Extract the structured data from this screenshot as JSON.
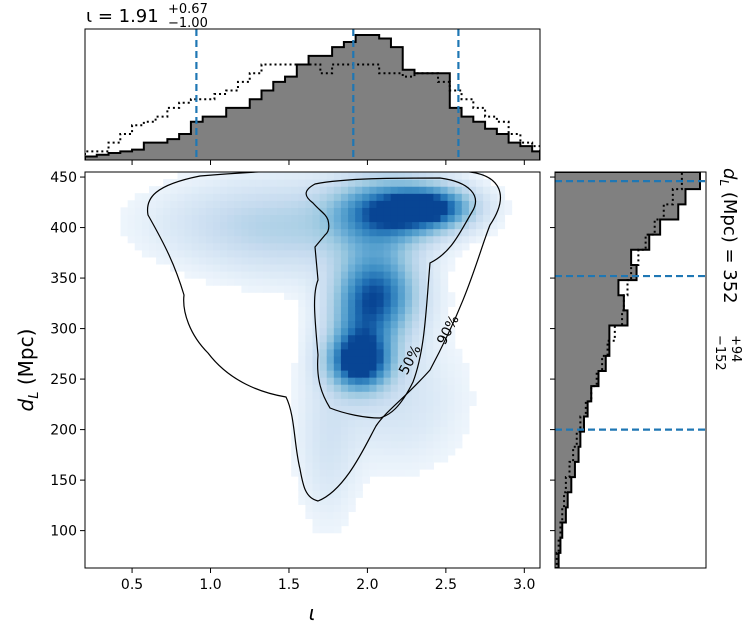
{
  "chart_data": {
    "type": "corner",
    "titles": {
      "top_main": "ι = 1.91",
      "top_sup": "+0.67",
      "top_sub": "−1.00",
      "right_main": "d",
      "right_main_sub": "L",
      "right_rest": " (Mpc) = 352",
      "right_sup": "+94",
      "right_sub": "−152"
    },
    "xlabel": "ι",
    "ylabel_main": "d",
    "ylabel_sub": "L",
    "ylabel_rest": " (Mpc)",
    "xlim": [
      0.2,
      3.1
    ],
    "ylim": [
      63,
      455
    ],
    "xticks": [
      0.5,
      1.0,
      1.5,
      2.0,
      2.5,
      3.0
    ],
    "xtick_labels": [
      "0.5",
      "1.0",
      "1.5",
      "2.0",
      "2.5",
      "3.0"
    ],
    "yticks": [
      100,
      150,
      200,
      250,
      300,
      350,
      400,
      450
    ],
    "ytick_labels": [
      "100",
      "150",
      "200",
      "250",
      "300",
      "350",
      "400",
      "450"
    ],
    "iota_quantiles": [
      0.91,
      1.91,
      2.58
    ],
    "dl_quantiles": [
      200,
      352,
      446
    ],
    "colors": {
      "hist_fill": "#808080",
      "quantile_line": "#1f77b4",
      "density": "#08306b"
    },
    "contour_labels": [
      "50%",
      "90%"
    ],
    "iota_hist": {
      "bin_edges": [
        0.2,
        0.275,
        0.35,
        0.425,
        0.5,
        0.575,
        0.65,
        0.725,
        0.8,
        0.875,
        0.95,
        1.025,
        1.1,
        1.175,
        1.25,
        1.325,
        1.4,
        1.475,
        1.55,
        1.625,
        1.7,
        1.775,
        1.85,
        1.925,
        2.0,
        2.075,
        2.15,
        2.225,
        2.3,
        2.375,
        2.45,
        2.525,
        2.6,
        2.675,
        2.75,
        2.825,
        2.9,
        2.975,
        3.05,
        3.1
      ],
      "posterior": [
        0.02,
        0.03,
        0.04,
        0.05,
        0.06,
        0.1,
        0.1,
        0.12,
        0.15,
        0.22,
        0.25,
        0.25,
        0.3,
        0.3,
        0.35,
        0.4,
        0.45,
        0.48,
        0.55,
        0.6,
        0.6,
        0.65,
        0.68,
        0.72,
        0.72,
        0.7,
        0.65,
        0.52,
        0.5,
        0.5,
        0.5,
        0.3,
        0.25,
        0.22,
        0.18,
        0.15,
        0.1,
        0.08,
        0.05
      ],
      "prior": [
        0.05,
        0.05,
        0.1,
        0.15,
        0.2,
        0.22,
        0.25,
        0.3,
        0.33,
        0.35,
        0.35,
        0.38,
        0.4,
        0.45,
        0.5,
        0.55,
        0.55,
        0.55,
        0.55,
        0.55,
        0.5,
        0.55,
        0.55,
        0.55,
        0.55,
        0.5,
        0.5,
        0.48,
        0.5,
        0.5,
        0.45,
        0.4,
        0.35,
        0.3,
        0.25,
        0.22,
        0.15,
        0.1,
        0.08
      ]
    },
    "dl_hist": {
      "bin_edges": [
        63,
        78,
        93,
        108,
        123,
        138,
        153,
        168,
        183,
        198,
        213,
        228,
        243,
        258,
        273,
        288,
        303,
        318,
        333,
        348,
        363,
        378,
        393,
        408,
        423,
        438,
        455
      ],
      "posterior": [
        0.02,
        0.03,
        0.04,
        0.06,
        0.07,
        0.09,
        0.11,
        0.13,
        0.14,
        0.16,
        0.18,
        0.2,
        0.24,
        0.28,
        0.3,
        0.3,
        0.4,
        0.38,
        0.35,
        0.45,
        0.42,
        0.52,
        0.58,
        0.68,
        0.72,
        0.8
      ],
      "prior": [
        0.01,
        0.02,
        0.03,
        0.04,
        0.05,
        0.06,
        0.08,
        0.1,
        0.12,
        0.14,
        0.17,
        0.2,
        0.23,
        0.26,
        0.29,
        0.33,
        0.37,
        0.38,
        0.4,
        0.42,
        0.46,
        0.5,
        0.55,
        0.6,
        0.65,
        0.7
      ]
    },
    "density_blobs": [
      {
        "x": 1.95,
        "y": 268,
        "sx": 0.13,
        "sy": 18,
        "w": 1.0
      },
      {
        "x": 2.4,
        "y": 420,
        "sx": 0.18,
        "sy": 14,
        "w": 1.0
      },
      {
        "x": 2.1,
        "y": 415,
        "sx": 0.22,
        "sy": 22,
        "w": 0.85
      },
      {
        "x": 2.1,
        "y": 335,
        "sx": 0.16,
        "sy": 30,
        "w": 0.7
      },
      {
        "x": 1.95,
        "y": 310,
        "sx": 0.14,
        "sy": 40,
        "w": 0.5
      },
      {
        "x": 1.55,
        "y": 400,
        "sx": 0.35,
        "sy": 30,
        "w": 0.22
      },
      {
        "x": 1.1,
        "y": 405,
        "sx": 0.35,
        "sy": 25,
        "w": 0.12
      },
      {
        "x": 1.75,
        "y": 190,
        "sx": 0.12,
        "sy": 50,
        "w": 0.12
      },
      {
        "x": 2.2,
        "y": 230,
        "sx": 0.25,
        "sy": 40,
        "w": 0.12
      }
    ]
  }
}
